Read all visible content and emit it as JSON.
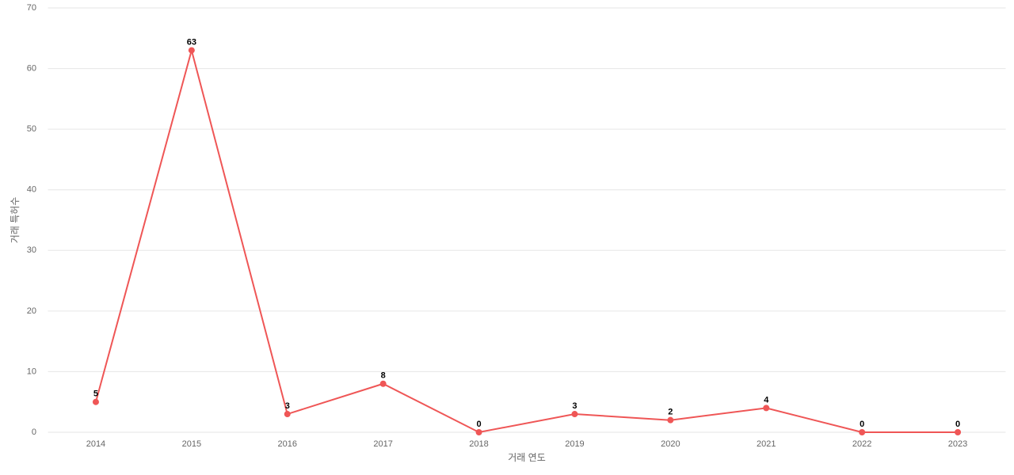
{
  "chart_data": {
    "type": "line",
    "x_label": "거래 연도",
    "y_label": "거래 특허수",
    "categories": [
      "2014",
      "2015",
      "2016",
      "2017",
      "2018",
      "2019",
      "2020",
      "2021",
      "2022",
      "2023"
    ],
    "values": [
      5,
      63,
      3,
      8,
      0,
      3,
      2,
      4,
      0,
      0
    ],
    "color": "#ef5656",
    "ylim": [
      0,
      70
    ],
    "yticks": [
      0,
      10,
      20,
      30,
      40,
      50,
      60,
      70
    ],
    "grid": true
  }
}
